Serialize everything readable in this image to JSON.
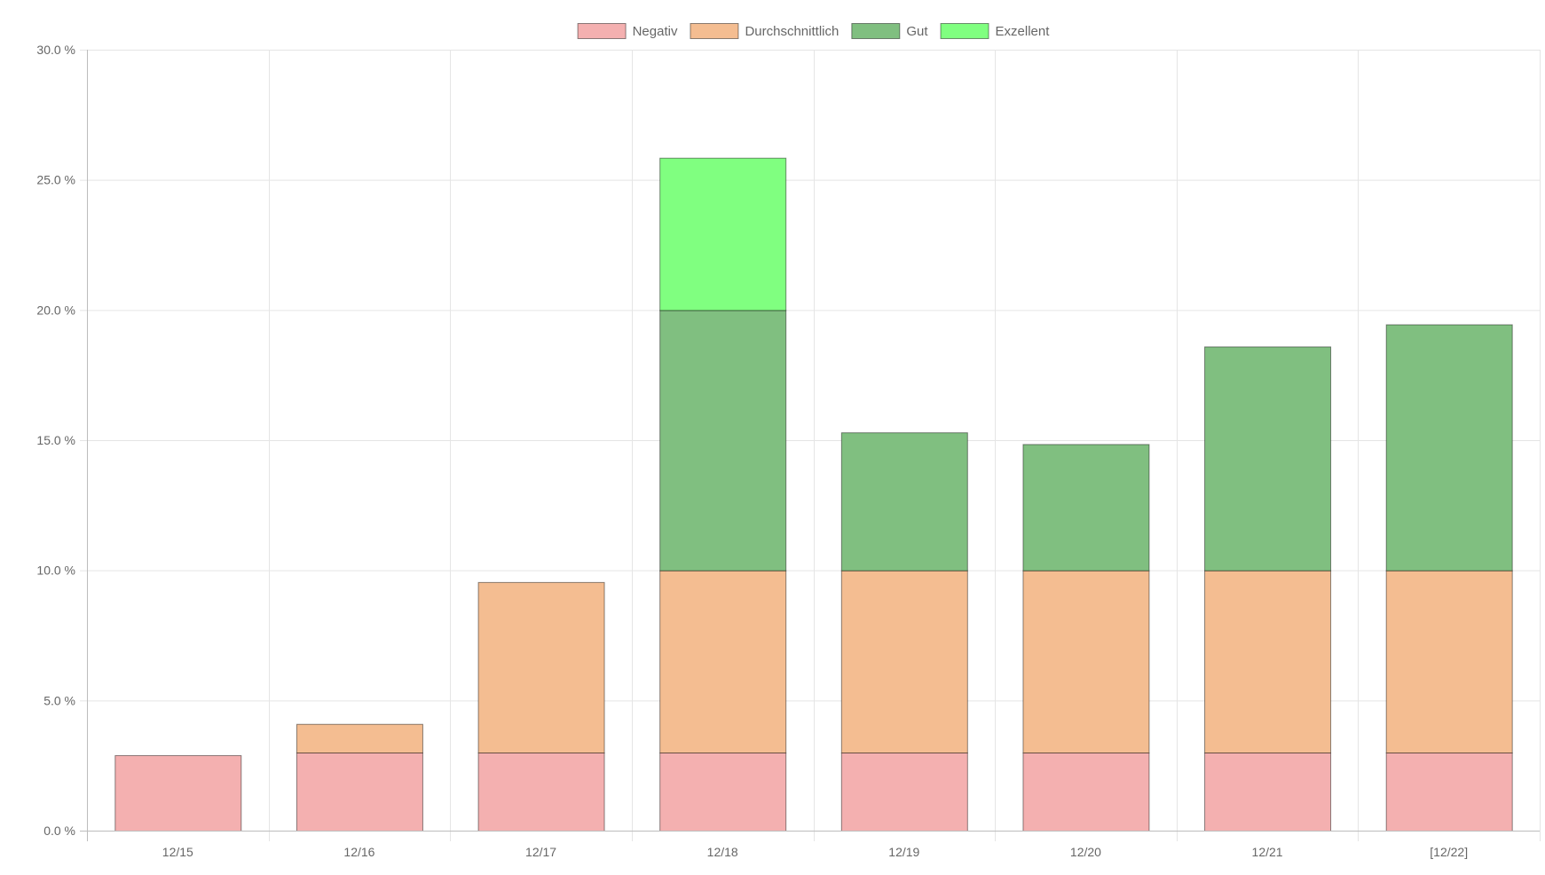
{
  "chart_data": {
    "type": "bar",
    "stacked": true,
    "categories": [
      "12/15",
      "12/16",
      "12/17",
      "12/18",
      "12/19",
      "12/20",
      "12/21",
      "[12/22]"
    ],
    "series": [
      {
        "name": "Negativ",
        "color": "#f4b0b0",
        "values": [
          2.9,
          3.0,
          3.0,
          3.0,
          3.0,
          3.0,
          3.0,
          3.0
        ]
      },
      {
        "name": "Durchschnittlich",
        "color": "#f4bd91",
        "values": [
          0,
          1.1,
          6.55,
          7.0,
          7.0,
          7.0,
          7.0,
          7.0
        ]
      },
      {
        "name": "Gut",
        "color": "#80bf80",
        "values": [
          0,
          0,
          0,
          10.0,
          5.3,
          4.85,
          8.6,
          9.45
        ]
      },
      {
        "name": "Exzellent",
        "color": "#80ff80",
        "values": [
          0,
          0,
          0,
          5.85,
          0,
          0,
          0,
          0
        ]
      }
    ],
    "ylim": [
      0,
      30
    ],
    "y_ticks": [
      0,
      5,
      10,
      15,
      20,
      25,
      30
    ],
    "y_tick_labels": [
      "0.0 %",
      "5.0 %",
      "10.0 %",
      "15.0 %",
      "20.0 %",
      "25.0 %",
      "30.0 %"
    ],
    "grid": true,
    "legend_position": "top-center",
    "title": "",
    "xlabel": "",
    "ylabel": ""
  }
}
